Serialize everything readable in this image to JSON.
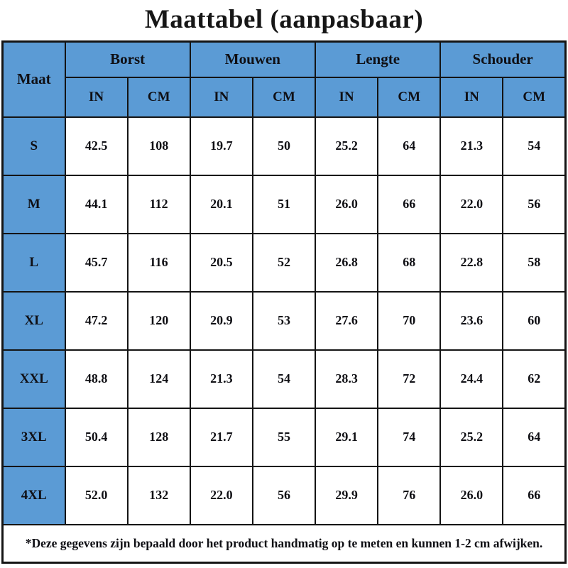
{
  "title": "Maattabel (aanpasbaar)",
  "colors": {
    "header_blue": "#5B9BD5",
    "border_black": "#141414",
    "text_black": "#0f0f14",
    "cell_white": "#ffffff"
  },
  "table": {
    "corner_header": "Maat",
    "groups": [
      {
        "label": "Borst"
      },
      {
        "label": "Mouwen"
      },
      {
        "label": "Lengte"
      },
      {
        "label": "Schouder"
      }
    ],
    "unit_headers": [
      "IN",
      "CM"
    ],
    "rows": [
      {
        "size": "S",
        "values": [
          "42.5",
          "108",
          "19.7",
          "50",
          "25.2",
          "64",
          "21.3",
          "54"
        ]
      },
      {
        "size": "M",
        "values": [
          "44.1",
          "112",
          "20.1",
          "51",
          "26.0",
          "66",
          "22.0",
          "56"
        ]
      },
      {
        "size": "L",
        "values": [
          "45.7",
          "116",
          "20.5",
          "52",
          "26.8",
          "68",
          "22.8",
          "58"
        ]
      },
      {
        "size": "XL",
        "values": [
          "47.2",
          "120",
          "20.9",
          "53",
          "27.6",
          "70",
          "23.6",
          "60"
        ]
      },
      {
        "size": "XXL",
        "values": [
          "48.8",
          "124",
          "21.3",
          "54",
          "28.3",
          "72",
          "24.4",
          "62"
        ]
      },
      {
        "size": "3XL",
        "values": [
          "50.4",
          "128",
          "21.7",
          "55",
          "29.1",
          "74",
          "25.2",
          "64"
        ]
      },
      {
        "size": "4XL",
        "values": [
          "52.0",
          "132",
          "22.0",
          "56",
          "29.9",
          "76",
          "26.0",
          "66"
        ]
      }
    ],
    "footnote": "*Deze gegevens zijn bepaald door het product handmatig op te meten en kunnen 1-2 cm afwijken."
  },
  "chart_data": {
    "type": "table",
    "title": "Maattabel (aanpasbaar)",
    "columns": [
      "Maat",
      "Borst IN",
      "Borst CM",
      "Mouwen IN",
      "Mouwen CM",
      "Lengte IN",
      "Lengte CM",
      "Schouder IN",
      "Schouder CM"
    ],
    "rows": [
      [
        "S",
        42.5,
        108,
        19.7,
        50,
        25.2,
        64,
        21.3,
        54
      ],
      [
        "M",
        44.1,
        112,
        20.1,
        51,
        26.0,
        66,
        22.0,
        56
      ],
      [
        "L",
        45.7,
        116,
        20.5,
        52,
        26.8,
        68,
        22.8,
        58
      ],
      [
        "XL",
        47.2,
        120,
        20.9,
        53,
        27.6,
        70,
        23.6,
        60
      ],
      [
        "XXL",
        48.8,
        124,
        21.3,
        54,
        28.3,
        72,
        24.4,
        62
      ],
      [
        "3XL",
        50.4,
        128,
        21.7,
        55,
        29.1,
        74,
        25.2,
        64
      ],
      [
        "4XL",
        52.0,
        132,
        22.0,
        56,
        29.9,
        76,
        26.0,
        66
      ]
    ],
    "footnote": "*Deze gegevens zijn bepaald door het product handmatig op te meten en kunnen 1-2 cm afwijken."
  }
}
